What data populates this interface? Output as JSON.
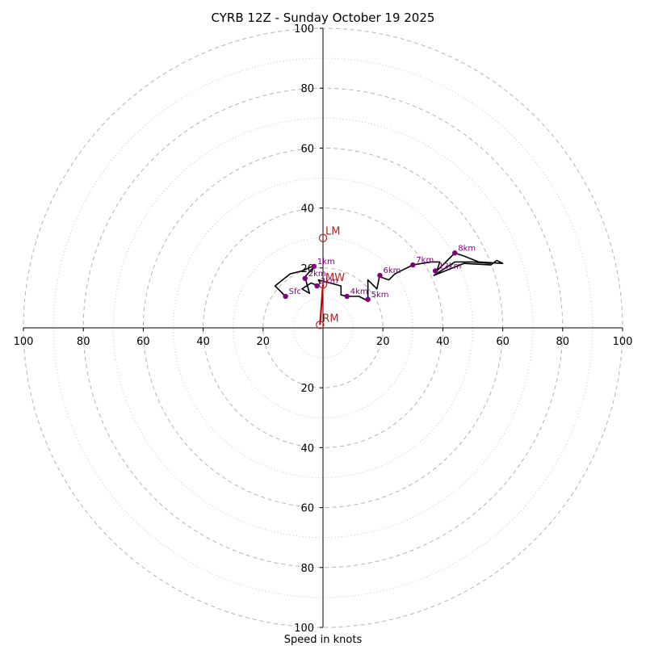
{
  "chart_data": {
    "type": "hodograph",
    "title": "CYRB 12Z - Sunday October 19 2025",
    "xlabel": "Speed in knots",
    "units": "knots",
    "xlim": [
      -100,
      100
    ],
    "ylim": [
      -100,
      100
    ],
    "ring_major": [
      20,
      40,
      60,
      80,
      100
    ],
    "ring_minor": [
      10,
      30,
      50,
      70,
      90
    ],
    "x_tick_labels": [
      "100",
      "80",
      "60",
      "40",
      "20",
      "20",
      "40",
      "60",
      "80",
      "100"
    ],
    "y_tick_labels_top": [
      "20",
      "40",
      "60",
      "80",
      "100"
    ],
    "y_tick_labels_bottom": [
      "20",
      "40",
      "60",
      "80",
      "100"
    ],
    "trace": {
      "name": "wind profile",
      "color": "#000000",
      "points": [
        [
          -12.5,
          10.5
        ],
        [
          -16,
          14
        ],
        [
          -11,
          18
        ],
        [
          -7,
          19
        ],
        [
          -2.5,
          21
        ],
        [
          -6,
          17
        ],
        [
          -4.5,
          11.5
        ],
        [
          -7,
          13
        ],
        [
          -4,
          15
        ],
        [
          -1.5,
          14
        ],
        [
          -1,
          15
        ],
        [
          -1.5,
          16
        ],
        [
          6,
          14
        ],
        [
          6,
          11
        ],
        [
          8,
          10.5
        ],
        [
          12,
          10.5
        ],
        [
          15,
          9
        ],
        [
          15,
          16
        ],
        [
          18,
          13
        ],
        [
          19,
          18
        ],
        [
          19,
          17
        ],
        [
          22,
          16
        ],
        [
          24,
          18
        ],
        [
          30,
          21
        ],
        [
          36,
          22
        ],
        [
          39,
          22
        ],
        [
          38,
          19
        ],
        [
          44,
          25
        ],
        [
          47,
          24
        ],
        [
          52,
          22
        ],
        [
          60,
          21.5
        ],
        [
          58,
          22.5
        ],
        [
          56,
          21
        ],
        [
          47,
          21.5
        ],
        [
          37,
          17.5
        ],
        [
          44,
          22
        ],
        [
          50,
          22
        ],
        [
          56,
          21.5
        ]
      ]
    },
    "height_markers": [
      {
        "label": "Sfc",
        "u": -12.5,
        "v": 10.5
      },
      {
        "label": "1km",
        "u": -3,
        "v": 20.5
      },
      {
        "label": "2km",
        "u": -6,
        "v": 16.5
      },
      {
        "label": "3km",
        "u": -2,
        "v": 14
      },
      {
        "label": "4km",
        "u": 8,
        "v": 10.5
      },
      {
        "label": "5km",
        "u": 15,
        "v": 9.5
      },
      {
        "label": "6km",
        "u": 19,
        "v": 17.5
      },
      {
        "label": "7km",
        "u": 30,
        "v": 21
      },
      {
        "label": "8km",
        "u": 44,
        "v": 25
      },
      {
        "label": "12km",
        "u": 37.5,
        "v": 19
      }
    ],
    "storm_motion": [
      {
        "label": "LM",
        "u": 0,
        "v": 30
      },
      {
        "label": "MW",
        "u": 0,
        "v": 14.5
      },
      {
        "label": "RM",
        "u": -1,
        "v": 1
      }
    ],
    "shear_vector": {
      "color": "#cc0000",
      "from": [
        -1,
        1
      ],
      "to": [
        0,
        14.5
      ]
    }
  }
}
